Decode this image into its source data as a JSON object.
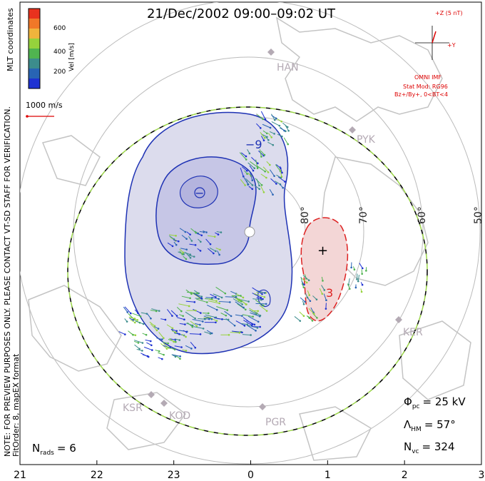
{
  "title": "21/Dec/2002 09:00–09:02 UT",
  "side_note": {
    "line1": "NOTE: FOR PREVIEW PURPOSES ONLY. PLEASE CONTACT VT-SD STAFF FOR VERIFICATION.",
    "line2": "FitOrder: 8, mapEX format"
  },
  "colorbar": {
    "title": "MLT coordinates",
    "label": "Vel [m/s]",
    "ticks": [
      "600",
      "400",
      "200"
    ],
    "colors": [
      "#e8321e",
      "#f07828",
      "#f0b43c",
      "#96d23c",
      "#50b450",
      "#3c8c8c",
      "#2864b4",
      "#1e32d2"
    ]
  },
  "scale": {
    "label": "1000 m/s"
  },
  "imf": {
    "z_label": "+Z (5 nT)",
    "y_label": "+Y",
    "src": "OMNI IMF",
    "model": "Stat Mod: RG96",
    "bins": "Bz+/By+, 0<BT<4"
  },
  "stats": {
    "phi_label": "Φ",
    "phi_sub": "pc",
    "phi_value": "= 25 kV",
    "lambda_label": "Λ",
    "lambda_sub": "HM",
    "lambda_value": "= 57°",
    "nvc_label": "N",
    "nvc_sub": "vc",
    "nvc_value": "= 324",
    "nrads_label": "N",
    "nrads_sub": "rads",
    "nrads_value": "= 6"
  },
  "contour_labels": {
    "neg": "−9",
    "pos": "3"
  },
  "stations": [
    "HAN",
    "PYK",
    "KER",
    "PGR",
    "KOD",
    "KSR"
  ],
  "chart_data": {
    "type": "scatter",
    "projection": "polar MLT grid",
    "mlt_ticks": [
      "21",
      "22",
      "23",
      "0",
      "1",
      "2",
      "3"
    ],
    "latitude_labels": [
      "80°",
      "70°",
      "60°",
      "50°"
    ],
    "potential_contours_kV": [
      -9,
      3
    ],
    "cross_polar_cap_potential_kV": 25,
    "heppner_maynard_boundary_deg": 57,
    "vector_count": 324,
    "radar_count": 6
  }
}
